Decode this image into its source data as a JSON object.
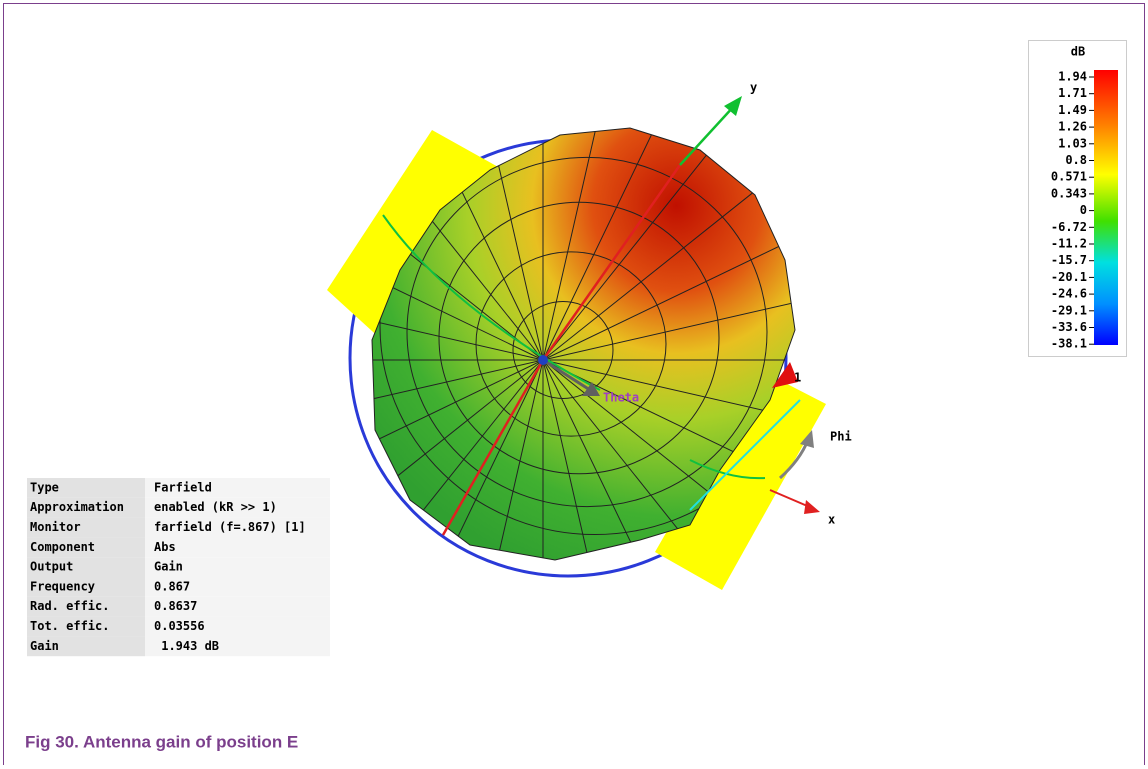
{
  "plot": {
    "axis_y": "y",
    "axis_x": "x",
    "theta": "Theta",
    "phi": "Phi",
    "marker": "1"
  },
  "colorbar": {
    "title": "dB",
    "ticks": [
      1.94,
      1.71,
      1.49,
      1.26,
      1.03,
      0.8,
      0.571,
      0.343,
      0,
      -6.72,
      -11.2,
      -15.7,
      -20.1,
      -24.6,
      -29.1,
      -33.6,
      -38.1
    ]
  },
  "table": {
    "rows": [
      [
        "Type",
        "Farfield"
      ],
      [
        "Approximation",
        "enabled (kR >> 1)"
      ],
      [
        "Monitor",
        "farfield (f=.867) [1]"
      ],
      [
        "Component",
        "Abs"
      ],
      [
        "Output",
        "Gain"
      ],
      [
        "Frequency",
        "0.867"
      ],
      [
        "Rad. effic.",
        "0.8637"
      ],
      [
        "Tot. effic.",
        "0.03556"
      ],
      [
        "Gain",
        " 1.943 dB"
      ]
    ]
  },
  "caption": "Fig 30. Antenna gain of position E"
}
